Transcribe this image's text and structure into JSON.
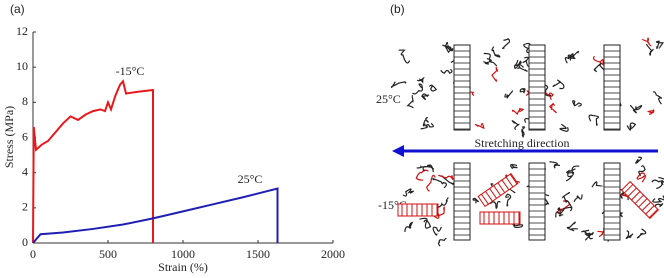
{
  "chart_data": {
    "type": "line",
    "panel_label": "(a)",
    "x_label": "Strain (%)",
    "y_label": "Stress (MPa)",
    "xlim": [
      0,
      2000
    ],
    "xticks": [
      0,
      500,
      1000,
      1500,
      2000
    ],
    "ylim": [
      0,
      12
    ],
    "yticks": [
      0,
      2,
      4,
      6,
      8,
      10,
      12
    ],
    "series": [
      {
        "name": "-15°C",
        "color": "#e8191c",
        "x": [
          0,
          5,
          20,
          60,
          100,
          150,
          200,
          250,
          300,
          350,
          400,
          450,
          480,
          500,
          520,
          550,
          580,
          600,
          620,
          700,
          800,
          800
        ],
        "values": [
          0,
          6.6,
          5.3,
          5.6,
          5.8,
          6.3,
          6.8,
          7.2,
          7.0,
          7.3,
          7.5,
          7.6,
          7.5,
          8.0,
          7.6,
          8.4,
          9.0,
          9.2,
          8.5,
          8.6,
          8.7,
          0
        ]
      },
      {
        "name": "25°C",
        "color": "#1f1fb4",
        "x": [
          0,
          50,
          200,
          400,
          600,
          800,
          1000,
          1200,
          1400,
          1630,
          1630
        ],
        "values": [
          0,
          0.5,
          0.6,
          0.8,
          1.05,
          1.4,
          1.8,
          2.2,
          2.6,
          3.1,
          0
        ]
      }
    ]
  },
  "panel_b": {
    "panel_label": "(b)",
    "top_label": "25°C",
    "arrow_label": "Stretching direction",
    "bottom_label": "-15°C"
  }
}
